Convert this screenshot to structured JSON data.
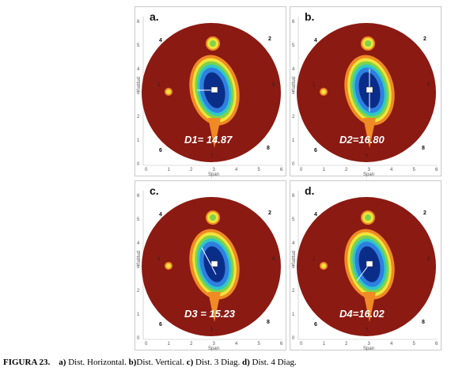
{
  "figure": {
    "panels": [
      {
        "letter": "a.",
        "distance_label": "D1= 14.87",
        "line": "horizontal",
        "ylabel": "Ylatitud"
      },
      {
        "letter": "b.",
        "distance_label": "D2=16.80",
        "line": "vertical",
        "ylabel": "Ylatitud"
      },
      {
        "letter": "c.",
        "distance_label": "D3 = 15.23",
        "line": "diag3",
        "ylabel": "Ylatitud"
      },
      {
        "letter": "d.",
        "distance_label": "D4=16.02",
        "line": "diag4",
        "ylabel": "Ylatitud"
      }
    ],
    "edge_numbers": [
      "4",
      "2",
      "6",
      "8",
      "1",
      "5",
      "3",
      "7"
    ],
    "axis_xlabel": "Span",
    "axis_ticks": [
      "0",
      "1",
      "2",
      "3",
      "4",
      "5",
      "6"
    ],
    "colors": {
      "background_field": "#8b1a12",
      "core": "#0b2d8a",
      "ring_blue": "#2f7fe0",
      "ring_cyan": "#2ec7c9",
      "ring_green": "#7fd34a",
      "ring_yellow": "#f2e43a",
      "ring_orange": "#f08a24"
    }
  },
  "caption": {
    "label": "FIGURA 23.",
    "a_key": "a)",
    "a_text": " Dist. Horizontal. ",
    "b_key": "b)",
    "b_text": "Dist. Vertical. ",
    "c_key": "c)",
    "c_text": " Dist. 3 Diag. ",
    "d_key": "d)",
    "d_text": " Dist. 4 Diag."
  }
}
